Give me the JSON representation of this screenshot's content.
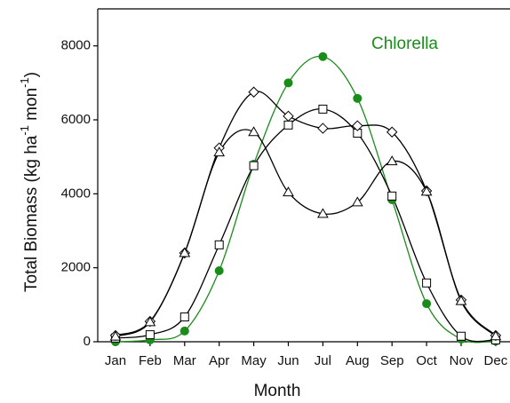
{
  "chart_data": {
    "type": "line",
    "y_label": [
      "Total Biomass (kg ha",
      "-1",
      " mon",
      "-1",
      ")"
    ],
    "x_label": "Month",
    "categories": [
      "Jan",
      "Feb",
      "Mar",
      "Apr",
      "May",
      "Jun",
      "Jul",
      "Aug",
      "Sep",
      "Oct",
      "Nov",
      "Dec"
    ],
    "series": [
      {
        "name": "Chlorella",
        "color": "#1a8c1a",
        "marker": "circle",
        "filled": true,
        "values": [
          0,
          50,
          290,
          1920,
          4800,
          7000,
          7710,
          6580,
          3840,
          1030,
          70,
          20
        ]
      },
      {
        "color": "#000000",
        "marker": "square",
        "filled": false,
        "values": [
          100,
          190,
          670,
          2620,
          4760,
          5860,
          6290,
          5640,
          3940,
          1590,
          150,
          50
        ]
      },
      {
        "color": "#000000",
        "marker": "diamond",
        "filled": false,
        "values": [
          170,
          550,
          2400,
          5240,
          6750,
          6100,
          5770,
          5840,
          5670,
          4080,
          1130,
          170
        ]
      },
      {
        "color": "#000000",
        "marker": "triangle",
        "filled": false,
        "values": [
          140,
          530,
          2400,
          5120,
          5670,
          4040,
          3460,
          3770,
          4880,
          4060,
          1100,
          150
        ]
      }
    ],
    "ylim": [
      0,
      9000
    ],
    "yticks": [
      0,
      2000,
      4000,
      6000,
      8000
    ]
  }
}
